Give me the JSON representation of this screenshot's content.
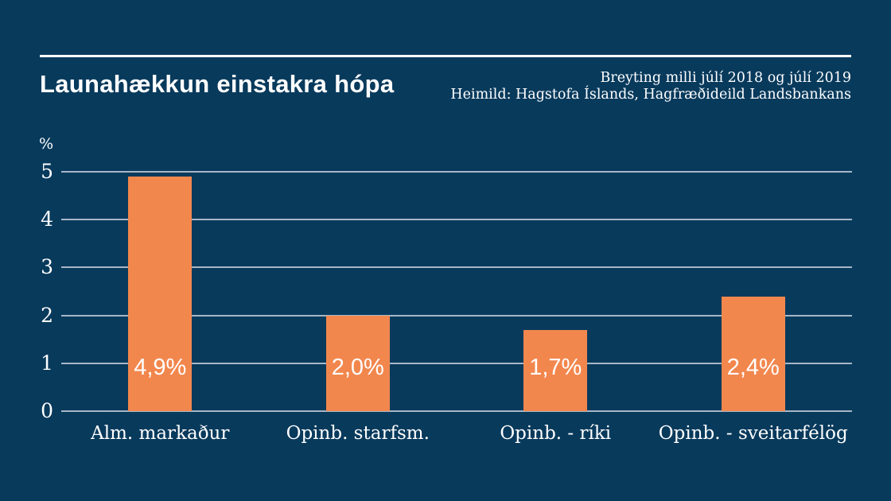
{
  "colors": {
    "background": "#083a5c",
    "bar": "#f2874e",
    "text": "#ffffff",
    "gridline": "#c3ced8",
    "rule": "#ffffff"
  },
  "header": {
    "title": "Launahækkun einstakra hópa",
    "subtitle_line1": "Breyting milli júlí 2018 og júlí 2019",
    "subtitle_line2": "Heimild: Hagstofa Íslands, Hagfræðideild Landsbankans"
  },
  "chart_data": {
    "type": "bar",
    "title": "Launahækkun einstakra hópa",
    "subtitle": "Breyting milli júlí 2018 og júlí 2019",
    "source": "Heimild: Hagstofa Íslands, Hagfræðideild Landsbankans",
    "categories": [
      "Alm. markaður",
      "Opinb. starfsm.",
      "Opinb. - ríki",
      "Opinb. - sveitarfélög"
    ],
    "values": [
      4.9,
      2.0,
      1.7,
      2.4
    ],
    "value_labels": [
      "4,9%",
      "2,0%",
      "1,7%",
      "2,4%"
    ],
    "xlabel": "",
    "ylabel": "%",
    "ylim": [
      0,
      5
    ],
    "yticks": [
      0,
      1,
      2,
      3,
      4,
      5
    ],
    "grid": true,
    "legend": false,
    "bar_color": "#f2874e"
  }
}
